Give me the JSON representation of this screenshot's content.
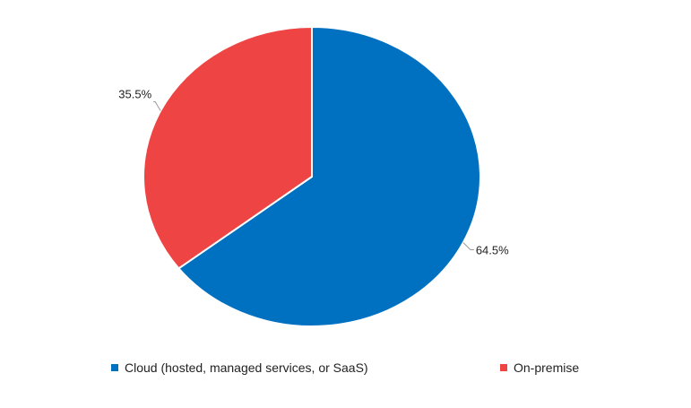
{
  "chart_data": {
    "type": "pie",
    "title": "",
    "categories": [
      "Cloud (hosted, managed services, or SaaS)",
      "On-premise"
    ],
    "values": [
      64.5,
      35.5
    ],
    "value_labels": [
      "64.5%",
      "35.5%"
    ],
    "colors": [
      "#0070C0",
      "#EF4444"
    ],
    "legend_position": "bottom"
  }
}
